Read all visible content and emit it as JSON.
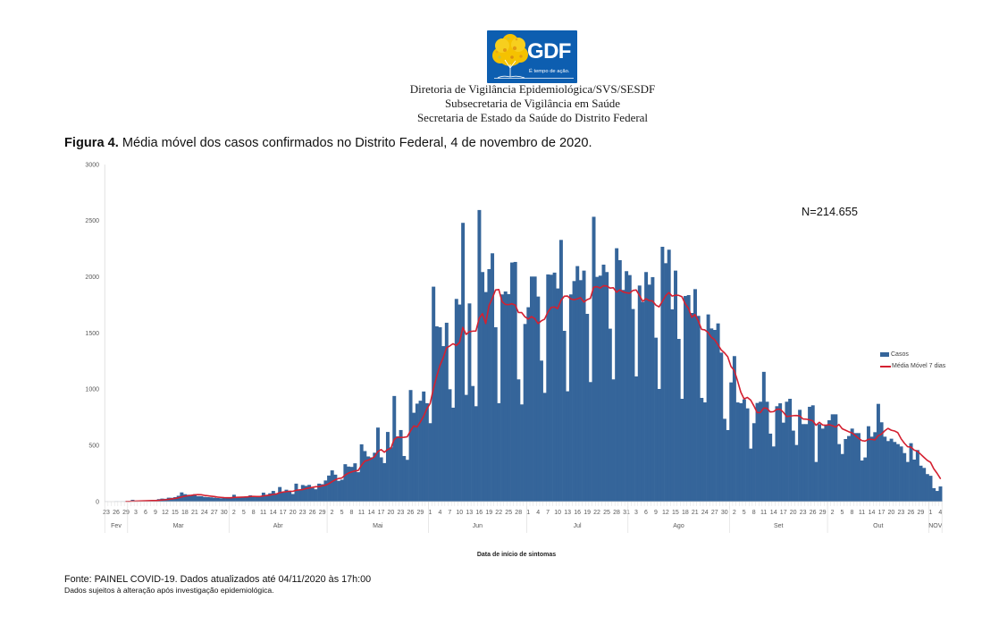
{
  "header": {
    "logo": {
      "icon": "ipe-tree-icon",
      "text": "GDF",
      "tagline": "É tempo de ação.",
      "bg_color": "#0D5EB0",
      "canopy_color": "#F5C200"
    },
    "lines": [
      "Diretoria de Vigilância Epidemiológica/SVS/SESDF",
      "Subsecretaria de Vigilância em Saúde",
      "Secretaria de Estado da Saúde do Distrito Federal"
    ]
  },
  "caption": {
    "label": "Figura 4.",
    "text": " Média móvel dos casos confirmados no Distrito Federal, 4 de novembro de 2020."
  },
  "chart_data": {
    "type": "bar",
    "title": "",
    "xlabel": "Data de início de sintomas",
    "ylabel": "",
    "ylim": [
      0,
      3000
    ],
    "y_ticks": [
      0,
      500,
      1000,
      1500,
      2000,
      2500,
      3000
    ],
    "grid": false,
    "annotation": "N=214.655",
    "legend": {
      "placement": "right",
      "items": [
        {
          "label": "Casos",
          "color": "#35659A",
          "marker": "bar"
        },
        {
          "label": "Média Móvel 7 dias",
          "color": "#D42030",
          "marker": "line"
        }
      ]
    },
    "x_tick_every_days": 3,
    "x_tick_labels": [
      "23",
      "26",
      "29",
      "3",
      "6",
      "9",
      "12",
      "15",
      "18",
      "21",
      "24",
      "27",
      "30",
      "2",
      "5",
      "8",
      "11",
      "14",
      "17",
      "20",
      "23",
      "26",
      "29",
      "2",
      "5",
      "8",
      "11",
      "14",
      "17",
      "20",
      "23",
      "26",
      "29",
      "1",
      "4",
      "7",
      "10",
      "13",
      "16",
      "19",
      "22",
      "25",
      "28",
      "1",
      "4",
      "7",
      "10",
      "13",
      "16",
      "19",
      "22",
      "25",
      "28",
      "31",
      "3",
      "6",
      "9",
      "12",
      "15",
      "18",
      "21",
      "24",
      "27",
      "30",
      "2",
      "5",
      "8",
      "11",
      "14",
      "17",
      "20",
      "23",
      "26",
      "29",
      "2",
      "5",
      "8",
      "11",
      "14",
      "17",
      "20",
      "23",
      "26",
      "29",
      "1",
      "4"
    ],
    "months": [
      {
        "label": "Fev",
        "days": 7
      },
      {
        "label": "Mar",
        "days": 31
      },
      {
        "label": "Abr",
        "days": 30
      },
      {
        "label": "Mai",
        "days": 31
      },
      {
        "label": "Jun",
        "days": 30
      },
      {
        "label": "Jul",
        "days": 31
      },
      {
        "label": "Ago",
        "days": 31
      },
      {
        "label": "Set",
        "days": 30
      },
      {
        "label": "Out",
        "days": 31
      },
      {
        "label": "NOV",
        "days": 4
      }
    ],
    "categories": [
      "23/02",
      "24/02",
      "25/02",
      "26/02",
      "27/02",
      "28/02",
      "29/02",
      "01/03",
      "02/03",
      "03/03",
      "04/03",
      "05/03",
      "06/03",
      "07/03",
      "08/03",
      "09/03",
      "10/03",
      "11/03",
      "12/03",
      "13/03",
      "14/03",
      "15/03",
      "16/03",
      "17/03",
      "18/03",
      "19/03",
      "20/03",
      "21/03",
      "22/03",
      "23/03",
      "24/03",
      "25/03",
      "26/03",
      "27/03",
      "28/03",
      "29/03",
      "30/03",
      "31/03",
      "01/04",
      "02/04",
      "03/04",
      "04/04",
      "05/04",
      "06/04",
      "07/04",
      "08/04",
      "09/04",
      "10/04",
      "11/04",
      "12/04",
      "13/04",
      "14/04",
      "15/04",
      "16/04",
      "17/04",
      "18/04",
      "19/04",
      "20/04",
      "21/04",
      "22/04",
      "23/04",
      "24/04",
      "25/04",
      "26/04",
      "27/04",
      "28/04",
      "29/04",
      "30/04",
      "01/05",
      "02/05",
      "03/05",
      "04/05",
      "05/05",
      "06/05",
      "07/05",
      "08/05",
      "09/05",
      "10/05",
      "11/05",
      "12/05",
      "13/05",
      "14/05",
      "15/05",
      "16/05",
      "17/05",
      "18/05",
      "19/05",
      "20/05",
      "21/05",
      "22/05",
      "23/05",
      "24/05",
      "25/05",
      "26/05",
      "27/05",
      "28/05",
      "29/05",
      "30/05",
      "31/05",
      "01/06",
      "02/06",
      "03/06",
      "04/06",
      "05/06",
      "06/06",
      "07/06",
      "08/06",
      "09/06",
      "10/06",
      "11/06",
      "12/06",
      "13/06",
      "14/06",
      "15/06",
      "16/06",
      "17/06",
      "18/06",
      "19/06",
      "20/06",
      "21/06",
      "22/06",
      "23/06",
      "24/06",
      "25/06",
      "26/06",
      "27/06",
      "28/06",
      "29/06",
      "30/06",
      "01/07",
      "02/07",
      "03/07",
      "04/07",
      "05/07",
      "06/07",
      "07/07",
      "08/07",
      "09/07",
      "10/07",
      "11/07",
      "12/07",
      "13/07",
      "14/07",
      "15/07",
      "16/07",
      "17/07",
      "18/07",
      "19/07",
      "20/07",
      "21/07",
      "22/07",
      "23/07",
      "24/07",
      "25/07",
      "26/07",
      "27/07",
      "28/07",
      "29/07",
      "30/07",
      "31/07",
      "01/08",
      "02/08",
      "03/08",
      "04/08",
      "05/08",
      "06/08",
      "07/08",
      "08/08",
      "09/08",
      "10/08",
      "11/08",
      "12/08",
      "13/08",
      "14/08",
      "15/08",
      "16/08",
      "17/08",
      "18/08",
      "19/08",
      "20/08",
      "21/08",
      "22/08",
      "23/08",
      "24/08",
      "25/08",
      "26/08",
      "27/08",
      "28/08",
      "29/08",
      "30/08",
      "31/08",
      "01/09",
      "02/09",
      "03/09",
      "04/09",
      "05/09",
      "06/09",
      "07/09",
      "08/09",
      "09/09",
      "10/09",
      "11/09",
      "12/09",
      "13/09",
      "14/09",
      "15/09",
      "16/09",
      "17/09",
      "18/09",
      "19/09",
      "20/09",
      "21/09",
      "22/09",
      "23/09",
      "24/09",
      "25/09",
      "26/09",
      "27/09",
      "28/09",
      "29/09",
      "30/09",
      "01/10",
      "02/10",
      "03/10",
      "04/10",
      "05/10",
      "06/10",
      "07/10",
      "08/10",
      "09/10",
      "10/10",
      "11/10",
      "12/10",
      "13/10",
      "14/10",
      "15/10",
      "16/10",
      "17/10",
      "18/10",
      "19/10",
      "20/10",
      "21/10",
      "22/10",
      "23/10",
      "24/10",
      "25/10",
      "26/10",
      "27/10",
      "28/10",
      "29/10",
      "30/10",
      "31/10",
      "01/11",
      "02/11",
      "03/11",
      "04/11"
    ],
    "series": [
      {
        "name": "Casos",
        "type": "bar",
        "color": "#35659A",
        "values": [
          1,
          0,
          0,
          2,
          1,
          2,
          3,
          4,
          16,
          5,
          6,
          8,
          10,
          9,
          12,
          14,
          22,
          27,
          25,
          35,
          34,
          40,
          52,
          82,
          66,
          61,
          58,
          66,
          48,
          48,
          42,
          40,
          38,
          35,
          32,
          30,
          33,
          35,
          36,
          61,
          42,
          40,
          38,
          45,
          56,
          45,
          48,
          44,
          80,
          61,
          74,
          95,
          74,
          130,
          80,
          106,
          88,
          68,
          160,
          100,
          148,
          140,
          149,
          122,
          110,
          160,
          155,
          188,
          232,
          278,
          240,
          185,
          195,
          333,
          312,
          309,
          341,
          262,
          510,
          450,
          402,
          394,
          435,
          659,
          394,
          343,
          620,
          483,
          940,
          580,
          637,
          406,
          372,
          993,
          791,
          872,
          898,
          980,
          876,
          698,
          1913,
          1560,
          1552,
          1384,
          1592,
          1000,
          836,
          1804,
          1754,
          2481,
          950,
          1764,
          1029,
          849,
          2595,
          2043,
          1865,
          2069,
          2210,
          1552,
          876,
          1844,
          1870,
          1847,
          2128,
          2133,
          1088,
          865,
          1581,
          1730,
          2003,
          2003,
          1825,
          1255,
          968,
          2022,
          2019,
          2038,
          1897,
          2329,
          1520,
          982,
          1844,
          1963,
          2096,
          1971,
          2056,
          1671,
          1064,
          2535,
          2000,
          2011,
          2109,
          2043,
          1539,
          1088,
          2255,
          2149,
          1884,
          2051,
          2016,
          1714,
          1114,
          1923,
          1777,
          2043,
          1931,
          1998,
          1459,
          1003,
          2268,
          2122,
          2242,
          1711,
          2056,
          1448,
          915,
          1830,
          1838,
          1679,
          1891,
          1653,
          923,
          883,
          1666,
          1541,
          1528,
          1586,
          1326,
          737,
          637,
          1061,
          1295,
          883,
          876,
          910,
          830,
          472,
          698,
          878,
          889,
          1155,
          889,
          605,
          491,
          849,
          875,
          703,
          889,
          915,
          632,
          504,
          817,
          690,
          690,
          844,
          857,
          353,
          690,
          650,
          677,
          724,
          777,
          777,
          512,
          424,
          557,
          584,
          650,
          610,
          610,
          366,
          393,
          671,
          578,
          618,
          870,
          706,
          578,
          539,
          560,
          531,
          512,
          491,
          432,
          353,
          520,
          374,
          459,
          320,
          300,
          245,
          230,
          120,
          95,
          135
        ]
      },
      {
        "name": "Média Móvel 7 dias",
        "type": "line",
        "color": "#D42030",
        "window": 7,
        "method": "trailing mean",
        "derived_from": "Casos"
      }
    ]
  },
  "footer": {
    "source": "Fonte: PAINEL COVID-19. Dados atualizados até 04/11/2020 às 17h:00",
    "note": "Dados sujeitos à alteração após investigação epidemiológica."
  }
}
